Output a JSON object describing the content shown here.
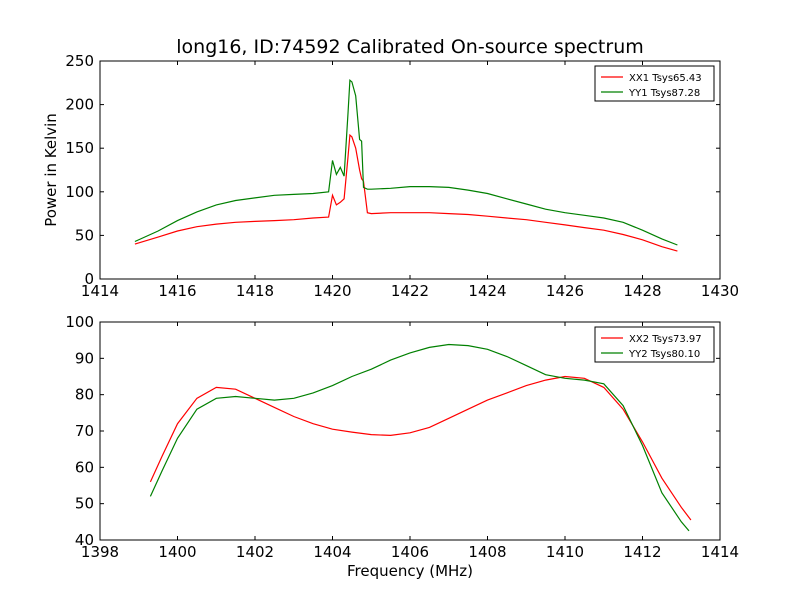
{
  "title": "long16, ID:74592 Calibrated On-source spectrum",
  "colors": {
    "xx": "#ff0000",
    "yy": "#008000"
  },
  "chart_data": [
    {
      "type": "line",
      "ylabel": "Power in Kelvin",
      "xlabel": "",
      "xlim": [
        1414,
        1430
      ],
      "ylim": [
        0,
        250
      ],
      "xticks": [
        1414,
        1416,
        1418,
        1420,
        1422,
        1424,
        1426,
        1428,
        1430
      ],
      "yticks": [
        0,
        50,
        100,
        150,
        200,
        250
      ],
      "legend_position": "top-right",
      "series": [
        {
          "name": "XX1 Tsys65.43",
          "color": "#ff0000",
          "x": [
            1414.9,
            1415.5,
            1416.0,
            1416.5,
            1417.0,
            1417.5,
            1418.0,
            1418.5,
            1419.0,
            1419.5,
            1419.9,
            1420.0,
            1420.1,
            1420.2,
            1420.3,
            1420.4,
            1420.45,
            1420.5,
            1420.6,
            1420.7,
            1420.75,
            1420.8,
            1420.9,
            1421.0,
            1421.5,
            1422.0,
            1422.5,
            1423.0,
            1423.5,
            1424.0,
            1424.5,
            1425.0,
            1425.5,
            1426.0,
            1426.5,
            1427.0,
            1427.5,
            1428.0,
            1428.5,
            1428.9
          ],
          "y": [
            40,
            48,
            55,
            60,
            63,
            65,
            66,
            67,
            68,
            70,
            71,
            96,
            85,
            88,
            92,
            140,
            165,
            163,
            150,
            125,
            115,
            112,
            76,
            75,
            76,
            76,
            76,
            75,
            74,
            72,
            70,
            68,
            65,
            62,
            59,
            56,
            51,
            45,
            37,
            32
          ]
        },
        {
          "name": "YY1 Tsys87.28",
          "color": "#008000",
          "x": [
            1414.9,
            1415.5,
            1416.0,
            1416.5,
            1417.0,
            1417.5,
            1418.0,
            1418.5,
            1419.0,
            1419.5,
            1419.9,
            1420.0,
            1420.1,
            1420.2,
            1420.3,
            1420.4,
            1420.45,
            1420.5,
            1420.6,
            1420.7,
            1420.75,
            1420.8,
            1420.9,
            1421.0,
            1421.5,
            1422.0,
            1422.5,
            1423.0,
            1423.5,
            1424.0,
            1424.5,
            1425.0,
            1425.5,
            1426.0,
            1426.5,
            1427.0,
            1427.5,
            1428.0,
            1428.5,
            1428.9
          ],
          "y": [
            43,
            55,
            67,
            77,
            85,
            90,
            93,
            96,
            97,
            98,
            100,
            136,
            120,
            128,
            118,
            190,
            228,
            226,
            210,
            160,
            158,
            105,
            103,
            103,
            104,
            106,
            106,
            105,
            102,
            98,
            92,
            86,
            80,
            76,
            73,
            70,
            65,
            56,
            46,
            39
          ]
        }
      ]
    },
    {
      "type": "line",
      "ylabel": "",
      "xlabel": "Frequency (MHz)",
      "xlim": [
        1398,
        1414
      ],
      "ylim": [
        40,
        100
      ],
      "xticks": [
        1398,
        1400,
        1402,
        1404,
        1406,
        1408,
        1410,
        1412,
        1414
      ],
      "yticks": [
        40,
        50,
        60,
        70,
        80,
        90,
        100
      ],
      "legend_position": "top-right",
      "series": [
        {
          "name": "XX2 Tsys73.97",
          "color": "#ff0000",
          "x": [
            1399.3,
            1399.6,
            1400.0,
            1400.5,
            1401.0,
            1401.5,
            1402.0,
            1402.5,
            1403.0,
            1403.5,
            1404.0,
            1404.5,
            1405.0,
            1405.5,
            1406.0,
            1406.5,
            1407.0,
            1407.5,
            1408.0,
            1408.5,
            1409.0,
            1409.5,
            1410.0,
            1410.5,
            1411.0,
            1411.5,
            1412.0,
            1412.5,
            1413.0,
            1413.25
          ],
          "y": [
            56,
            63,
            72,
            79,
            82,
            81.5,
            79,
            76.5,
            74,
            72,
            70.5,
            69.7,
            69,
            68.8,
            69.5,
            71,
            73.5,
            76,
            78.5,
            80.5,
            82.5,
            84,
            85,
            84.5,
            82,
            76,
            67,
            57,
            49,
            45.5
          ]
        },
        {
          "name": "YY2 Tsys80.10",
          "color": "#008000",
          "x": [
            1399.3,
            1399.6,
            1400.0,
            1400.5,
            1401.0,
            1401.5,
            1402.0,
            1402.5,
            1403.0,
            1403.5,
            1404.0,
            1404.5,
            1405.0,
            1405.5,
            1406.0,
            1406.5,
            1407.0,
            1407.5,
            1408.0,
            1408.5,
            1409.0,
            1409.5,
            1410.0,
            1410.5,
            1411.0,
            1411.5,
            1412.0,
            1412.5,
            1413.0,
            1413.2
          ],
          "y": [
            52,
            59,
            68,
            76,
            79,
            79.5,
            79,
            78.5,
            79,
            80.5,
            82.5,
            85,
            87,
            89.5,
            91.5,
            93,
            93.8,
            93.5,
            92.5,
            90.5,
            88,
            85.5,
            84.5,
            84,
            83,
            77,
            66,
            53,
            45,
            42.5
          ]
        }
      ]
    }
  ]
}
